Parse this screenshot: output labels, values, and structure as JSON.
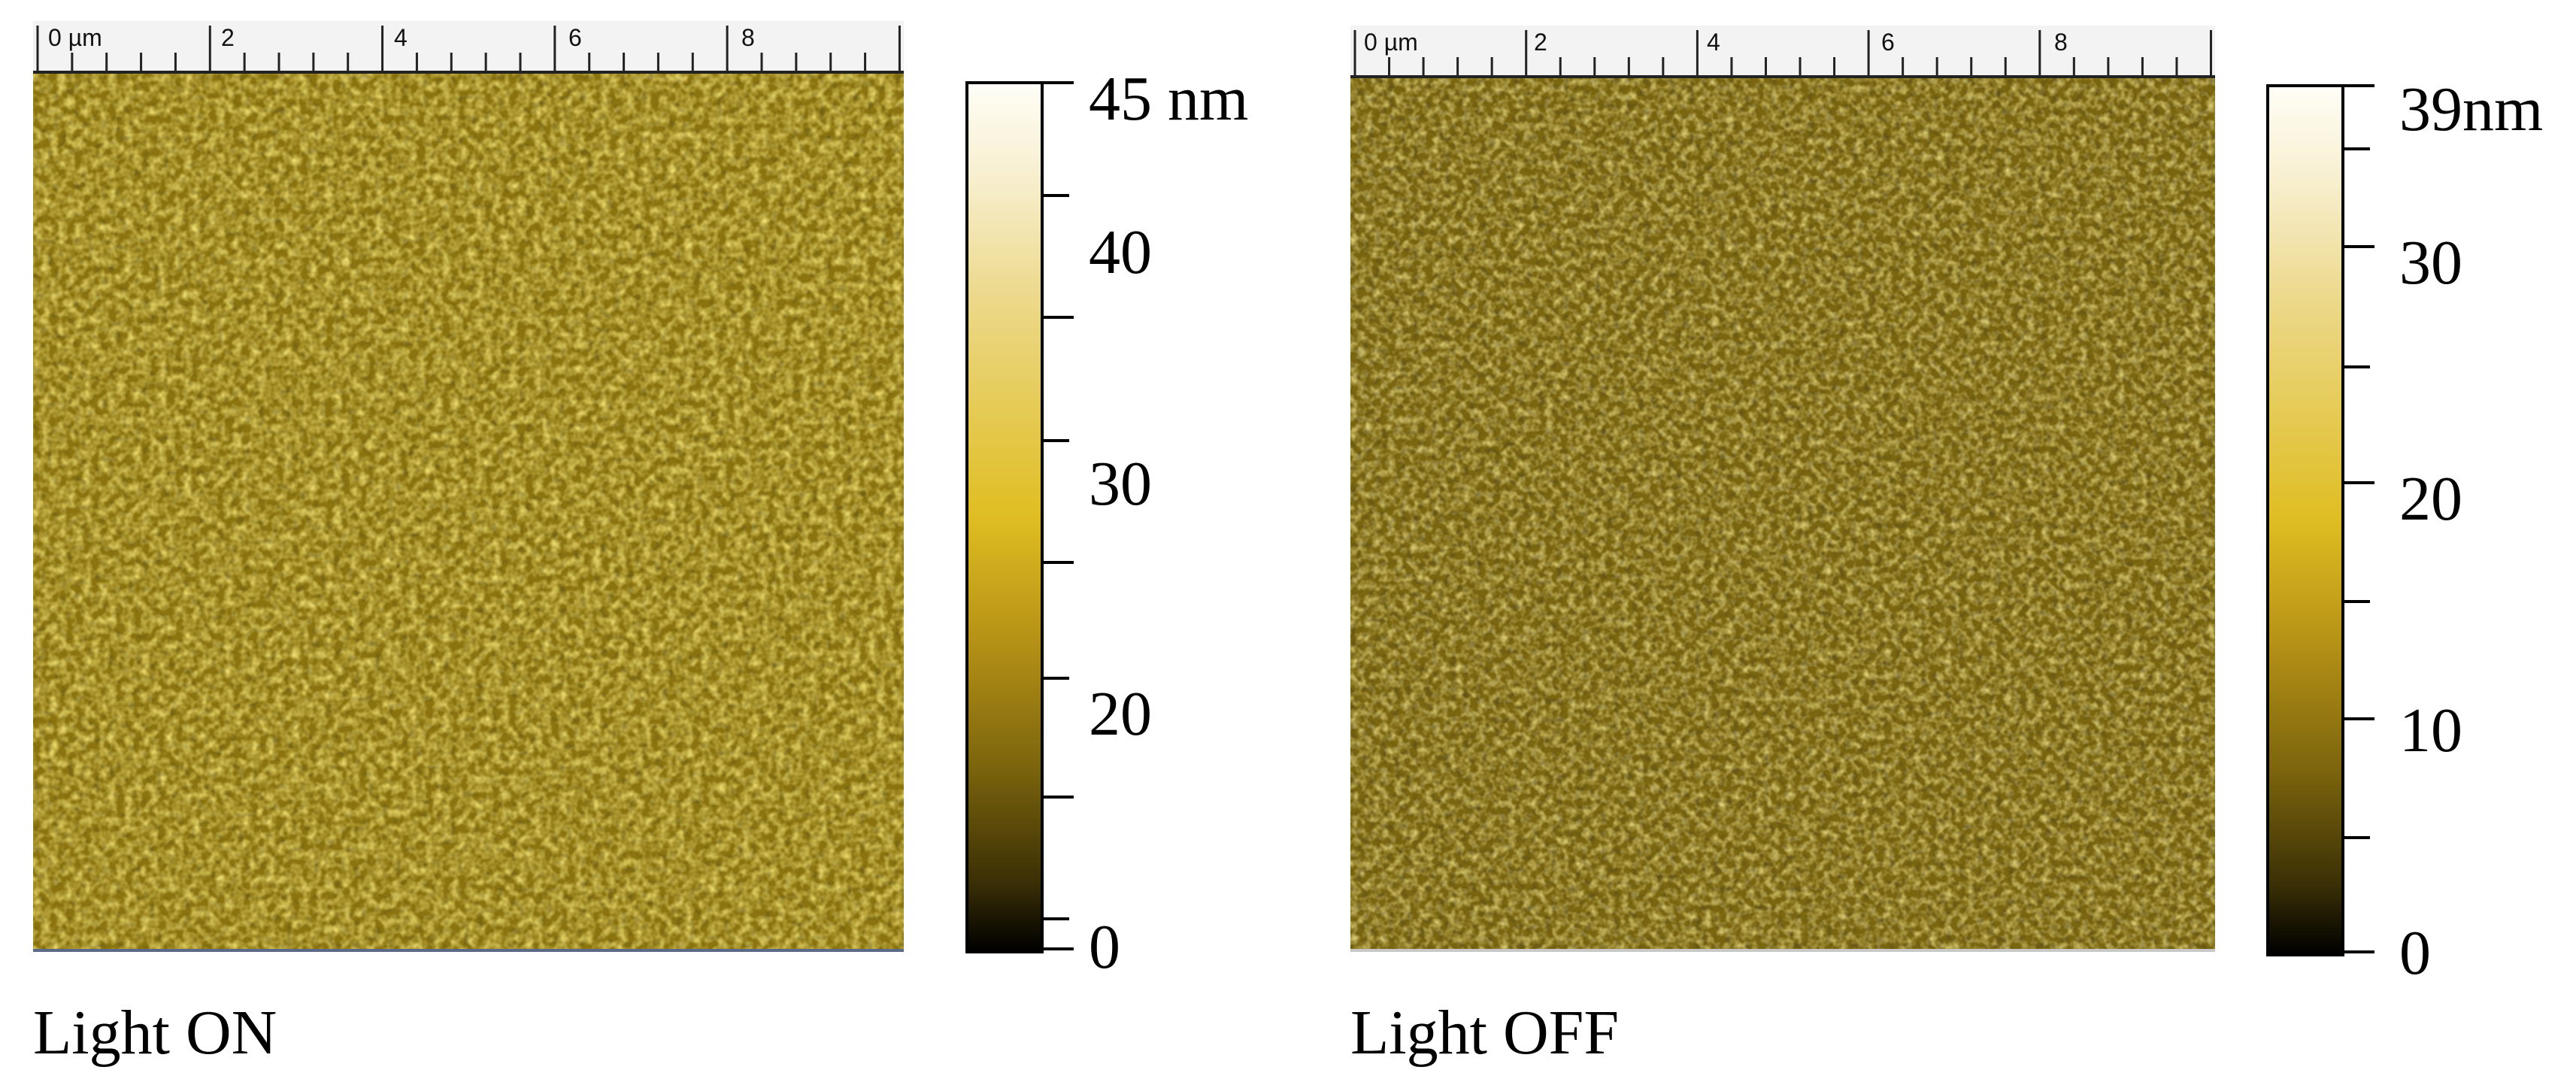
{
  "panels": [
    {
      "caption": "Light ON",
      "ruler_labels": [
        "0 µm",
        "2",
        "4",
        "6",
        "8"
      ],
      "colorbar": {
        "labels": [
          "45 nm",
          "40",
          "30",
          "20",
          "0"
        ],
        "colors": [
          "#fffef6",
          "#ecd889",
          "#dfbd22",
          "#7b640d",
          "#000000"
        ]
      },
      "surface_color": "#8b7410",
      "grain_highlight": "#f4dc5e"
    },
    {
      "caption": "Light OFF",
      "ruler_labels": [
        "0 µm",
        "2",
        "4",
        "6",
        "8"
      ],
      "colorbar": {
        "labels": [
          "39nm",
          "30",
          "20",
          "10",
          "0"
        ],
        "colors": [
          "#fffef6",
          "#ecd889",
          "#dfbd22",
          "#7b640d",
          "#000000"
        ]
      },
      "surface_color": "#7a6510",
      "grain_highlight": "#e8cd47"
    }
  ]
}
